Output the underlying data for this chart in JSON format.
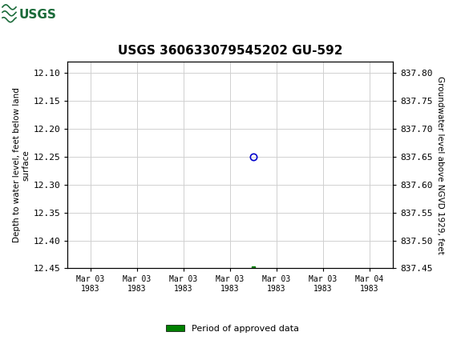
{
  "title": "USGS 360633079545202 GU-592",
  "ylabel_left": "Depth to water level, feet below land\nsurface",
  "ylabel_right": "Groundwater level above NGVD 1929, feet",
  "ylim_left": [
    12.45,
    12.08
  ],
  "ylim_right": [
    837.45,
    837.82
  ],
  "yticks_left": [
    12.1,
    12.15,
    12.2,
    12.25,
    12.3,
    12.35,
    12.4,
    12.45
  ],
  "yticks_right": [
    837.8,
    837.75,
    837.7,
    837.65,
    837.6,
    837.55,
    837.5,
    837.45
  ],
  "data_point_x": 3.5,
  "data_point_y": 12.25,
  "approved_point_x": 3.5,
  "approved_point_y": 12.45,
  "header_color": "#1b6b3a",
  "grid_color": "#d0d0d0",
  "dot_color": "#0000cc",
  "approved_color": "#008000",
  "legend_label": "Period of approved data",
  "xtick_labels": [
    "Mar 03\n1983",
    "Mar 03\n1983",
    "Mar 03\n1983",
    "Mar 03\n1983",
    "Mar 03\n1983",
    "Mar 03\n1983",
    "Mar 04\n1983"
  ],
  "xtick_positions": [
    0,
    1,
    2,
    3,
    4,
    5,
    6
  ],
  "xlim": [
    -0.5,
    6.5
  ],
  "bg_color": "#ffffff",
  "plot_bg_color": "#ffffff"
}
